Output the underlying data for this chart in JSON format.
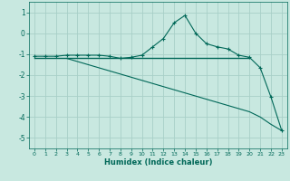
{
  "xlabel": "Humidex (Indice chaleur)",
  "bg_color": "#c8e8e0",
  "grid_color": "#a8d0c8",
  "line_color": "#006858",
  "xlim": [
    -0.5,
    23.5
  ],
  "ylim": [
    -5.5,
    1.5
  ],
  "yticks": [
    1,
    0,
    -1,
    -2,
    -3,
    -4,
    -5
  ],
  "xticks": [
    0,
    1,
    2,
    3,
    4,
    5,
    6,
    7,
    8,
    9,
    10,
    11,
    12,
    13,
    14,
    15,
    16,
    17,
    18,
    19,
    20,
    21,
    22,
    23
  ],
  "line1_x": [
    0,
    1,
    2,
    3,
    4,
    5,
    6,
    7,
    8,
    9,
    10,
    11,
    12,
    13,
    14,
    15,
    16,
    17,
    18,
    19,
    20,
    21,
    22,
    23
  ],
  "line1_y": [
    -1.1,
    -1.1,
    -1.1,
    -1.05,
    -1.05,
    -1.05,
    -1.05,
    -1.1,
    -1.2,
    -1.15,
    -1.05,
    -0.65,
    -0.25,
    0.5,
    0.85,
    0.0,
    -0.5,
    -0.65,
    -0.75,
    -1.05,
    -1.15,
    -1.65,
    -3.05,
    -4.65
  ],
  "line2_x": [
    0,
    20
  ],
  "line2_y": [
    -1.2,
    -1.2
  ],
  "line3_x": [
    3,
    4,
    5,
    6,
    7,
    8,
    9,
    10,
    11,
    12,
    13,
    14,
    15,
    16,
    17,
    18,
    19,
    20,
    21,
    22,
    23
  ],
  "line3_y": [
    -1.2,
    -1.35,
    -1.5,
    -1.65,
    -1.8,
    -1.95,
    -2.1,
    -2.25,
    -2.4,
    -2.55,
    -2.7,
    -2.85,
    -3.0,
    -3.15,
    -3.3,
    -3.45,
    -3.6,
    -3.75,
    -4.0,
    -4.35,
    -4.65
  ]
}
